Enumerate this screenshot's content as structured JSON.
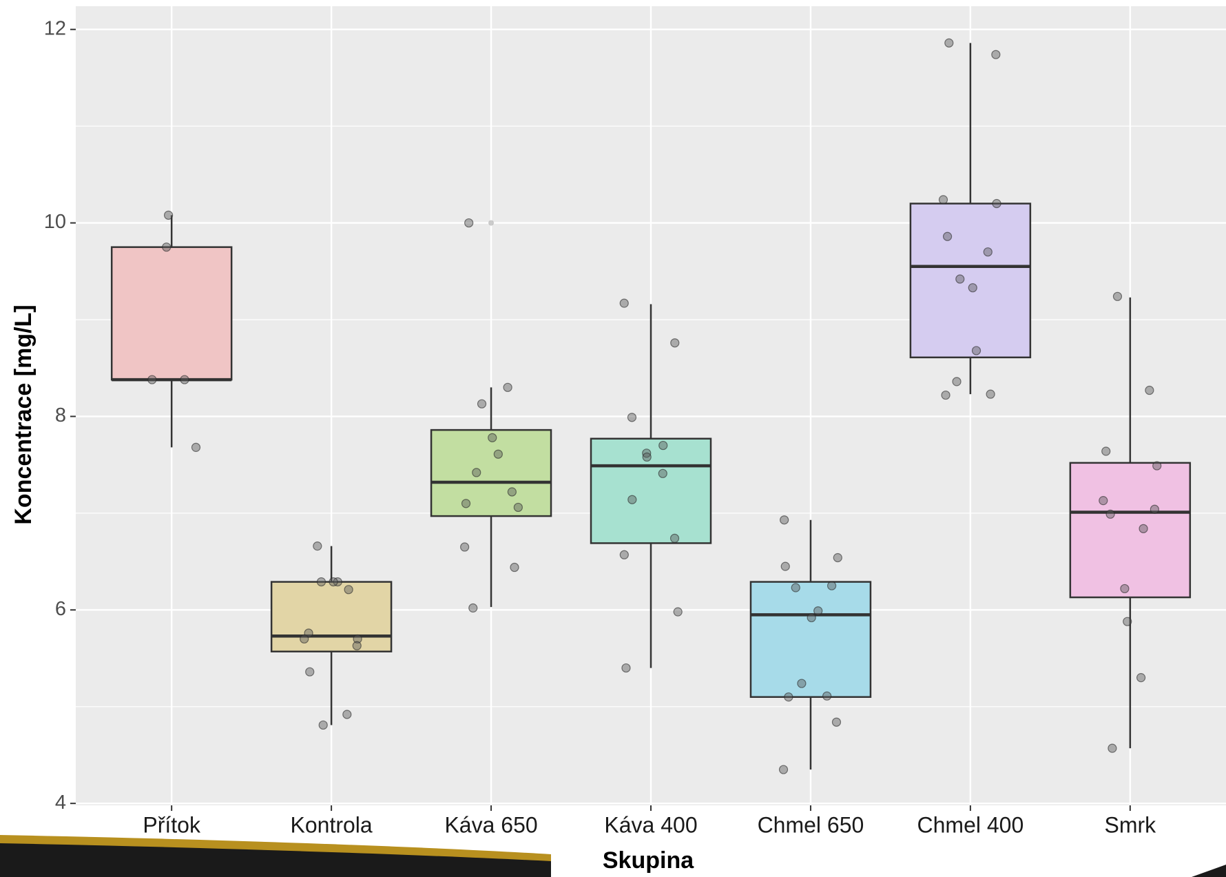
{
  "chart_data": {
    "type": "boxplot",
    "x_label": "Skupina",
    "y_label": "Koncentrace [mg/L]",
    "categories": [
      "Přítok",
      "Kontrola",
      "Káva 650",
      "Káva 400",
      "Chmel 650",
      "Chmel 400",
      "Smrk"
    ],
    "boxes": [
      {
        "whislo": 7.68,
        "q1": 8.38,
        "med": 8.38,
        "q3": 9.75,
        "whishi": 10.08,
        "color": "#f0c5c5",
        "outliers": [],
        "points": [
          10.08,
          9.75,
          8.38,
          8.38,
          7.68
        ]
      },
      {
        "whislo": 4.81,
        "q1": 5.57,
        "med": 5.73,
        "q3": 6.29,
        "whishi": 6.66,
        "color": "#e2d5a6",
        "outliers": [],
        "points": [
          6.66,
          6.29,
          6.29,
          6.29,
          6.21,
          5.76,
          5.7,
          5.7,
          5.63,
          5.36,
          4.92,
          4.81
        ]
      },
      {
        "whislo": 6.03,
        "q1": 6.97,
        "med": 7.32,
        "q3": 7.86,
        "whishi": 8.3,
        "color": "#c2dea1",
        "outliers": [
          10.0
        ],
        "points": [
          10.0,
          8.3,
          8.13,
          7.78,
          7.61,
          7.42,
          7.22,
          7.1,
          7.06,
          6.65,
          6.44,
          6.02
        ]
      },
      {
        "whislo": 5.4,
        "q1": 6.69,
        "med": 7.49,
        "q3": 7.77,
        "whishi": 9.16,
        "color": "#a7e1d0",
        "outliers": [],
        "points": [
          9.17,
          8.76,
          7.99,
          7.7,
          7.62,
          7.58,
          7.41,
          7.14,
          6.74,
          6.57,
          5.98,
          5.4
        ]
      },
      {
        "whislo": 4.35,
        "q1": 5.1,
        "med": 5.95,
        "q3": 6.29,
        "whishi": 6.93,
        "color": "#a7dbe9",
        "outliers": [],
        "points": [
          6.93,
          6.54,
          6.45,
          6.25,
          6.23,
          5.99,
          5.92,
          5.24,
          5.11,
          5.1,
          4.84,
          4.35
        ]
      },
      {
        "whislo": 8.23,
        "q1": 8.61,
        "med": 9.55,
        "q3": 10.2,
        "whishi": 11.86,
        "color": "#d5ccf0",
        "outliers": [],
        "points": [
          11.86,
          11.74,
          10.24,
          10.2,
          9.86,
          9.7,
          9.42,
          9.33,
          8.68,
          8.36,
          8.23,
          8.22
        ]
      },
      {
        "whislo": 4.57,
        "q1": 6.13,
        "med": 7.01,
        "q3": 7.52,
        "whishi": 9.23,
        "color": "#f0c1e3",
        "outliers": [],
        "points": [
          9.24,
          8.27,
          7.64,
          7.49,
          7.13,
          7.04,
          6.99,
          6.84,
          6.22,
          5.88,
          5.3,
          4.57
        ]
      }
    ],
    "ylim": [
      3.98,
      12.24
    ],
    "yticks": [
      4,
      6,
      8,
      10,
      12
    ],
    "grid": true,
    "minor_grid": true
  }
}
